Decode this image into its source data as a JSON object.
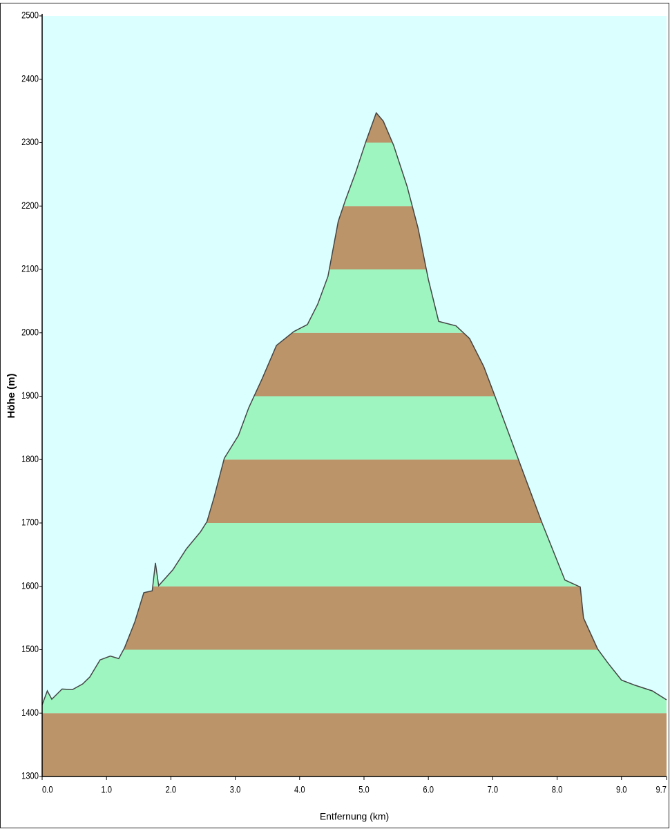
{
  "chart_data": {
    "type": "area",
    "xlabel": "Entfernung  (km)",
    "ylabel": "Höhe (m)",
    "x": [
      0,
      0.08,
      0.15,
      0.31,
      0.47,
      0.63,
      0.74,
      0.9,
      1.06,
      1.19,
      1.28,
      1.44,
      1.58,
      1.71,
      1.76,
      1.81,
      2.03,
      2.24,
      2.46,
      2.56,
      2.67,
      2.83,
      3.05,
      3.21,
      3.42,
      3.64,
      3.91,
      4.12,
      4.28,
      4.44,
      4.6,
      4.71,
      4.87,
      5.03,
      5.19,
      5.3,
      5.46,
      5.67,
      5.84,
      6.0,
      6.16,
      6.43,
      6.64,
      6.86,
      7.02,
      7.4,
      7.77,
      8.12,
      8.36,
      8.41,
      8.63,
      8.79,
      9.0,
      9.21,
      9.48,
      9.7
    ],
    "values": [
      1413,
      1435,
      1422,
      1438,
      1437,
      1446,
      1457,
      1484,
      1490,
      1486,
      1503,
      1544,
      1590,
      1593,
      1637,
      1601,
      1626,
      1659,
      1686,
      1702,
      1740,
      1802,
      1838,
      1882,
      1928,
      1980,
      2002,
      2013,
      2045,
      2089,
      2176,
      2209,
      2253,
      2302,
      2347,
      2334,
      2296,
      2231,
      2165,
      2084,
      2018,
      2011,
      1991,
      1947,
      1904,
      1800,
      1699,
      1610,
      1599,
      1550,
      1501,
      1479,
      1452,
      1444,
      1435,
      1421
    ],
    "color": "#444444",
    "band_colors": [
      "#bb946a",
      "#9ef5c0"
    ],
    "background": "#dbffff",
    "xlim": [
      0,
      9.7
    ],
    "ylim": [
      1300,
      2500
    ],
    "xticks": [
      {
        "value": 0,
        "label": "0.0"
      },
      {
        "value": 1,
        "label": "1.0"
      },
      {
        "value": 2,
        "label": "2.0"
      },
      {
        "value": 3,
        "label": "3.0"
      },
      {
        "value": 4,
        "label": "4.0"
      },
      {
        "value": 5,
        "label": "5.0"
      },
      {
        "value": 6,
        "label": "6.0"
      },
      {
        "value": 7,
        "label": "7.0"
      },
      {
        "value": 8,
        "label": "8.0"
      },
      {
        "value": 9,
        "label": "9.0"
      },
      9.7
    ],
    "yticks": [
      1300,
      1400,
      1500,
      1600,
      1700,
      1800,
      1900,
      2000,
      2100,
      2200,
      2300,
      2400,
      2500
    ]
  }
}
